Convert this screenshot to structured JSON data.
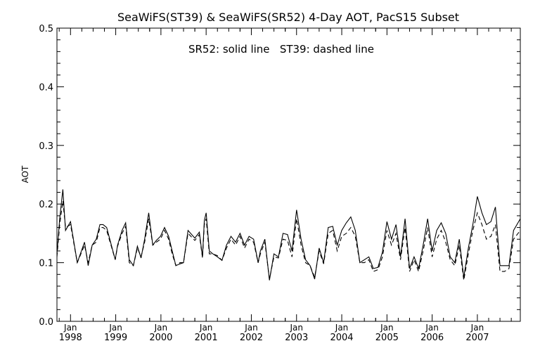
{
  "chart_data": {
    "type": "line",
    "title": "SeaWiFS(ST39) & SeaWiFS(SR52) 4-Day AOT, PacS15 Subset",
    "annotation": "SR52: solid line   ST39: dashed line",
    "ylabel": "AOT",
    "xlabel": "",
    "ylim": [
      0.0,
      0.5
    ],
    "yticks": [
      "0.0",
      "0.1",
      "0.2",
      "0.3",
      "0.4",
      "0.5"
    ],
    "xlim": [
      1997.7,
      2007.95
    ],
    "xticks": [
      {
        "month": "Jan",
        "year": "1998",
        "x": 1998
      },
      {
        "month": "Jan",
        "year": "1999",
        "x": 1999
      },
      {
        "month": "Jan",
        "year": "2000",
        "x": 2000
      },
      {
        "month": "Jan",
        "year": "2001",
        "x": 2001
      },
      {
        "month": "Jan",
        "year": "2002",
        "x": 2002
      },
      {
        "month": "Jan",
        "year": "2003",
        "x": 2003
      },
      {
        "month": "Jan",
        "year": "2004",
        "x": 2004
      },
      {
        "month": "Jan",
        "year": "2005",
        "x": 2005
      },
      {
        "month": "Jan",
        "year": "2006",
        "x": 2006
      },
      {
        "month": "Jan",
        "year": "2007",
        "x": 2007
      }
    ],
    "grid": false,
    "x": [
      1997.7,
      1997.76,
      1997.83,
      1997.89,
      1998.0,
      1998.15,
      1998.31,
      1998.39,
      1998.48,
      1998.57,
      1998.65,
      1998.72,
      1998.8,
      1998.99,
      1999.04,
      1999.14,
      1999.22,
      1999.3,
      1999.39,
      1999.48,
      1999.56,
      1999.64,
      1999.73,
      1999.82,
      1999.9,
      1999.99,
      2000.08,
      2000.17,
      2000.25,
      2000.33,
      2000.42,
      2000.5,
      2000.6,
      2000.75,
      2000.85,
      2000.92,
      2000.96,
      2001.0,
      2001.07,
      2001.15,
      2001.25,
      2001.35,
      2001.45,
      2001.55,
      2001.65,
      2001.75,
      2001.85,
      2001.95,
      2002.05,
      2002.15,
      2002.2,
      2002.3,
      2002.4,
      2002.5,
      2002.6,
      2002.7,
      2002.8,
      2002.9,
      2003.0,
      2003.1,
      2003.2,
      2003.3,
      2003.4,
      2003.5,
      2003.6,
      2003.7,
      2003.8,
      2003.9,
      2004.0,
      2004.1,
      2004.2,
      2004.3,
      2004.4,
      2004.5,
      2004.6,
      2004.7,
      2004.8,
      2004.9,
      2005.0,
      2005.1,
      2005.2,
      2005.3,
      2005.4,
      2005.5,
      2005.6,
      2005.7,
      2005.8,
      2005.9,
      2006.0,
      2006.1,
      2006.2,
      2006.3,
      2006.4,
      2006.5,
      2006.6,
      2006.7,
      2006.8,
      2006.9,
      2007.0,
      2007.1,
      2007.2,
      2007.3,
      2007.4,
      2007.5,
      2007.6,
      2007.7,
      2007.8,
      2007.95
    ],
    "series": [
      {
        "name": "SR52",
        "style": "solid",
        "color": "#000000",
        "values": [
          0.115,
          0.175,
          0.225,
          0.155,
          0.17,
          0.1,
          0.135,
          0.095,
          0.13,
          0.14,
          0.165,
          0.165,
          0.16,
          0.105,
          0.13,
          0.155,
          0.168,
          0.105,
          0.095,
          0.128,
          0.108,
          0.14,
          0.185,
          0.13,
          0.138,
          0.145,
          0.16,
          0.145,
          0.12,
          0.095,
          0.098,
          0.1,
          0.155,
          0.142,
          0.152,
          0.11,
          0.172,
          0.185,
          0.12,
          0.115,
          0.11,
          0.104,
          0.13,
          0.145,
          0.135,
          0.15,
          0.13,
          0.145,
          0.14,
          0.1,
          0.12,
          0.14,
          0.07,
          0.115,
          0.11,
          0.15,
          0.148,
          0.12,
          0.19,
          0.14,
          0.105,
          0.095,
          0.072,
          0.125,
          0.1,
          0.16,
          0.162,
          0.13,
          0.155,
          0.168,
          0.178,
          0.155,
          0.1,
          0.105,
          0.11,
          0.09,
          0.092,
          0.118,
          0.17,
          0.14,
          0.165,
          0.11,
          0.175,
          0.09,
          0.11,
          0.09,
          0.13,
          0.175,
          0.12,
          0.155,
          0.168,
          0.15,
          0.11,
          0.1,
          0.14,
          0.075,
          0.125,
          0.165,
          0.213,
          0.185,
          0.165,
          0.17,
          0.195,
          0.095,
          0.095,
          0.095,
          0.155,
          0.175
        ]
      },
      {
        "name": "ST39",
        "style": "dashed",
        "color": "#000000",
        "values": [
          0.11,
          0.165,
          0.205,
          0.16,
          0.165,
          0.1,
          0.13,
          0.1,
          0.13,
          0.135,
          0.16,
          0.16,
          0.155,
          0.105,
          0.128,
          0.15,
          0.162,
          0.1,
          0.095,
          0.125,
          0.11,
          0.135,
          0.175,
          0.13,
          0.135,
          0.14,
          0.155,
          0.14,
          0.115,
          0.095,
          0.1,
          0.1,
          0.15,
          0.138,
          0.148,
          0.108,
          0.165,
          0.175,
          0.115,
          0.115,
          0.112,
          0.104,
          0.125,
          0.14,
          0.13,
          0.145,
          0.125,
          0.14,
          0.135,
          0.1,
          0.115,
          0.135,
          0.072,
          0.11,
          0.108,
          0.14,
          0.138,
          0.11,
          0.175,
          0.13,
          0.1,
          0.095,
          0.075,
          0.12,
          0.098,
          0.15,
          0.155,
          0.12,
          0.145,
          0.15,
          0.16,
          0.145,
          0.1,
          0.1,
          0.105,
          0.085,
          0.088,
          0.11,
          0.155,
          0.13,
          0.15,
          0.105,
          0.16,
          0.085,
          0.105,
          0.085,
          0.12,
          0.16,
          0.11,
          0.14,
          0.155,
          0.135,
          0.105,
          0.095,
          0.13,
          0.07,
          0.115,
          0.155,
          0.185,
          0.165,
          0.14,
          0.145,
          0.165,
          0.085,
          0.085,
          0.09,
          0.14,
          0.155
        ]
      }
    ]
  }
}
